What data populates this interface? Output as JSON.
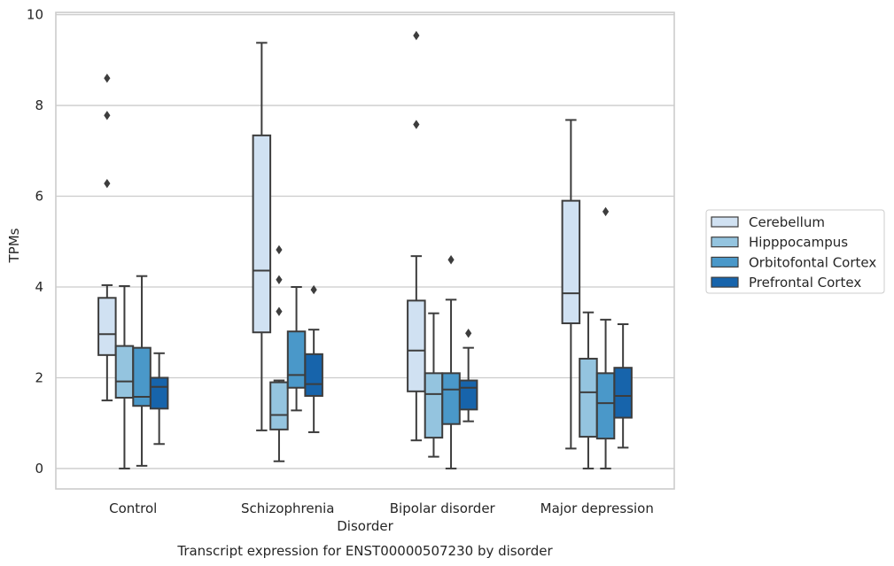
{
  "chart_data": {
    "type": "box",
    "title": "",
    "caption": "Transcript expression for ENST00000507230 by disorder",
    "xlabel": "Disorder",
    "ylabel": "TPMs",
    "ylim": [
      -0.45,
      10.05
    ],
    "yticks": [
      0,
      2,
      4,
      6,
      8,
      10
    ],
    "grid": true,
    "legend_position": "right",
    "categories": [
      "Control",
      "Schizophrenia",
      "Bipolar disorder",
      "Major depression"
    ],
    "series": [
      {
        "name": "Cerebellum",
        "color": "#d0e1f2",
        "boxes": [
          {
            "whisker_low": 1.5,
            "q1": 2.5,
            "median": 2.96,
            "q3": 3.76,
            "whisker_high": 4.04,
            "outliers": [
              6.28,
              7.78,
              8.6
            ]
          },
          {
            "whisker_low": 0.84,
            "q1": 3.0,
            "median": 4.36,
            "q3": 7.34,
            "whisker_high": 9.38,
            "outliers": []
          },
          {
            "whisker_low": 0.62,
            "q1": 1.7,
            "median": 2.6,
            "q3": 3.7,
            "whisker_high": 4.68,
            "outliers": [
              7.58,
              9.54
            ]
          },
          {
            "whisker_low": 0.44,
            "q1": 3.2,
            "median": 3.86,
            "q3": 5.9,
            "whisker_high": 7.68,
            "outliers": []
          }
        ]
      },
      {
        "name": "Hipppocampus",
        "color": "#94c4df",
        "boxes": [
          {
            "whisker_low": 0.0,
            "q1": 1.56,
            "median": 1.92,
            "q3": 2.7,
            "whisker_high": 4.02,
            "outliers": []
          },
          {
            "whisker_low": 0.16,
            "q1": 0.86,
            "median": 1.18,
            "q3": 1.9,
            "whisker_high": 1.94,
            "outliers": [
              3.46,
              4.16,
              4.82
            ]
          },
          {
            "whisker_low": 0.26,
            "q1": 0.68,
            "median": 1.64,
            "q3": 2.1,
            "whisker_high": 3.42,
            "outliers": []
          },
          {
            "whisker_low": 0.0,
            "q1": 0.7,
            "median": 1.68,
            "q3": 2.42,
            "whisker_high": 3.44,
            "outliers": []
          }
        ]
      },
      {
        "name": "Orbitofontal Cortex",
        "color": "#4a98c9",
        "boxes": [
          {
            "whisker_low": 0.06,
            "q1": 1.38,
            "median": 1.58,
            "q3": 2.66,
            "whisker_high": 4.24,
            "outliers": []
          },
          {
            "whisker_low": 1.28,
            "q1": 1.78,
            "median": 2.06,
            "q3": 3.02,
            "whisker_high": 4.0,
            "outliers": []
          },
          {
            "whisker_low": 0.0,
            "q1": 0.98,
            "median": 1.74,
            "q3": 2.1,
            "whisker_high": 3.72,
            "outliers": [
              4.6
            ]
          },
          {
            "whisker_low": 0.0,
            "q1": 0.66,
            "median": 1.44,
            "q3": 2.1,
            "whisker_high": 3.28,
            "outliers": [
              5.66
            ]
          }
        ]
      },
      {
        "name": "Prefrontal Cortex",
        "color": "#1764ab",
        "boxes": [
          {
            "whisker_low": 0.54,
            "q1": 1.32,
            "median": 1.8,
            "q3": 2.0,
            "whisker_high": 2.54,
            "outliers": []
          },
          {
            "whisker_low": 0.8,
            "q1": 1.6,
            "median": 1.86,
            "q3": 2.52,
            "whisker_high": 3.06,
            "outliers": [
              3.94
            ]
          },
          {
            "whisker_low": 1.04,
            "q1": 1.3,
            "median": 1.78,
            "q3": 1.94,
            "whisker_high": 2.66,
            "outliers": [
              2.98
            ]
          },
          {
            "whisker_low": 0.46,
            "q1": 1.12,
            "median": 1.6,
            "q3": 2.22,
            "whisker_high": 3.18,
            "outliers": []
          }
        ]
      }
    ]
  }
}
